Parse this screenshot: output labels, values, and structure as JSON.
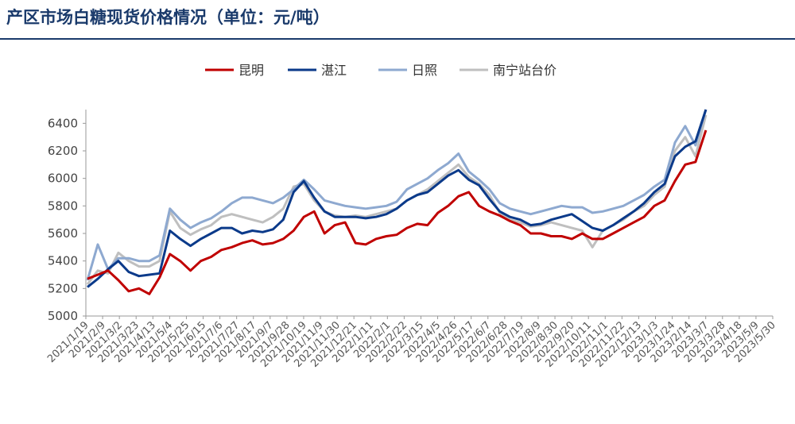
{
  "title": "产区市场白糖现货价格情况（单位：元/吨）",
  "chart_data": {
    "type": "line",
    "title": "产区市场白糖现货价格情况（单位：元/吨）",
    "xlabel": "",
    "ylabel": "",
    "ylim": [
      5000,
      6500
    ],
    "yticks": [
      5000,
      5200,
      5400,
      5600,
      5800,
      6000,
      6200,
      6400
    ],
    "legend_position": "top-center",
    "grid": false,
    "xticks": [
      "2021/1/19",
      "2021/2/9",
      "2021/3/2",
      "2021/3/23",
      "2021/4/13",
      "2021/5/4",
      "2021/5/25",
      "2021/6/15",
      "2021/7/6",
      "2021/7/27",
      "2021/8/17",
      "2021/9/7",
      "2021/9/28",
      "2021/10/19",
      "2021/11/9",
      "2021/11/30",
      "2021/12/21",
      "2022/1/11",
      "2022/2/1",
      "2022/2/22",
      "2022/3/15",
      "2022/4/5",
      "2022/4/26",
      "2022/5/17",
      "2022/6/7",
      "2022/6/28",
      "2022/7/19",
      "2022/8/9",
      "2022/8/30",
      "2022/9/20",
      "2022/10/11",
      "2022/11/1",
      "2022/11/22",
      "2022/12/13",
      "2023/1/3",
      "2023/1/24",
      "2023/2/14",
      "2023/3/7",
      "2023/3/28",
      "2023/4/18",
      "2023/5/9",
      "2023/5/30"
    ],
    "series": [
      {
        "name": "昆明",
        "color": "#c00000",
        "values": [
          5270,
          5300,
          5330,
          5260,
          5180,
          5200,
          5160,
          5280,
          5450,
          5400,
          5330,
          5400,
          5430,
          5480,
          5500,
          5530,
          5550,
          5520,
          5530,
          5560,
          5620,
          5720,
          5760,
          5600,
          5660,
          5680,
          5530,
          5520,
          5560,
          5580,
          5590,
          5640,
          5670,
          5660,
          5750,
          5800,
          5870,
          5900,
          5800,
          5760,
          5730,
          5690,
          5660,
          5600,
          5600,
          5580,
          5580,
          5560,
          5600,
          5560,
          5560,
          5600,
          5640,
          5680,
          5720,
          5800,
          5840,
          5980,
          6100,
          6120,
          6350
        ]
      },
      {
        "name": "湛江",
        "color": "#0b3a8a",
        "values": [
          5210,
          5270,
          5340,
          5400,
          5320,
          5290,
          5300,
          5310,
          5620,
          5560,
          5510,
          5560,
          5600,
          5640,
          5640,
          5600,
          5620,
          5610,
          5630,
          5700,
          5900,
          5980,
          5860,
          5760,
          5720,
          5720,
          5720,
          5710,
          5720,
          5740,
          5780,
          5840,
          5880,
          5900,
          5960,
          6020,
          6060,
          5990,
          5950,
          5850,
          5760,
          5720,
          5700,
          5660,
          5670,
          5700,
          5720,
          5740,
          5690,
          5640,
          5620,
          5660,
          5710,
          5760,
          5820,
          5900,
          5960,
          6160,
          6230,
          6270,
          6500
        ]
      },
      {
        "name": "日照",
        "color": "#8ea9d0",
        "values": [
          5260,
          5520,
          5340,
          5420,
          5420,
          5400,
          5400,
          5440,
          5780,
          5700,
          5640,
          5680,
          5710,
          5760,
          5820,
          5860,
          5860,
          5840,
          5820,
          5860,
          5920,
          5990,
          5920,
          5840,
          5820,
          5800,
          5790,
          5780,
          5790,
          5800,
          5830,
          5920,
          5960,
          6000,
          6060,
          6110,
          6180,
          6050,
          5990,
          5920,
          5820,
          5780,
          5760,
          5740,
          5760,
          5780,
          5800,
          5790,
          5790,
          5750,
          5760,
          5780,
          5800,
          5840,
          5880,
          5940,
          5990,
          6260,
          6380,
          6240,
          6500
        ]
      },
      {
        "name": "南宁站台价",
        "color": "#bfbfbf",
        "values": [
          5230,
          5330,
          5310,
          5460,
          5400,
          5360,
          5360,
          5400,
          5760,
          5640,
          5590,
          5630,
          5660,
          5720,
          5740,
          5720,
          5700,
          5680,
          5720,
          5780,
          5940,
          5960,
          5840,
          5760,
          5730,
          5720,
          5730,
          5720,
          5740,
          5760,
          5780,
          5840,
          5880,
          5920,
          5980,
          6040,
          6100,
          6010,
          5960,
          5880,
          5750,
          5700,
          5680,
          5650,
          5660,
          5680,
          5660,
          5640,
          5620,
          5500,
          5620,
          5660,
          5700,
          5760,
          5800,
          5880,
          5940,
          6200,
          6300,
          6160,
          6460
        ]
      }
    ]
  }
}
